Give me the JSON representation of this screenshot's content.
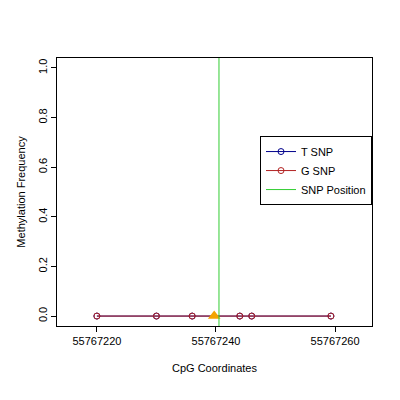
{
  "chart_data": {
    "type": "line",
    "x_label": "CpG Coordinates",
    "y_label": "Methylation Frequency",
    "xlim": [
      55767213.3,
      55767266.2
    ],
    "xticks": [
      55767220,
      55767240,
      55767260
    ],
    "ylim": [
      -0.04,
      1.04
    ],
    "yticks": [
      {
        "value": 0,
        "label": "0.0"
      },
      {
        "value": 0.2,
        "label": "0.2"
      },
      {
        "value": 0.4,
        "label": "0.4"
      },
      {
        "value": 0.6,
        "label": "0.6"
      },
      {
        "value": 0.8,
        "label": "0.8"
      },
      {
        "value": 1,
        "label": "1.0"
      }
    ],
    "grid": false,
    "legend": "right",
    "series": [
      {
        "name": "T SNP",
        "color": "#00008b",
        "type": "line",
        "marker": "circle-open",
        "x": [
          55767220,
          55767230,
          55767236,
          55767244,
          55767246,
          55767259.3
        ],
        "values": [
          0,
          0,
          0,
          0,
          0,
          0
        ]
      },
      {
        "name": "G SNP",
        "color": "#b22222",
        "type": "line",
        "marker": "circle-open",
        "x": [
          55767220,
          55767230,
          55767236,
          55767244,
          55767246,
          55767259.3
        ],
        "values": [
          0,
          0,
          0,
          0,
          0,
          0
        ]
      },
      {
        "color": "#f4a300",
        "type": "scatter",
        "marker": "triangle-up",
        "x": [
          55767239.7
        ],
        "values": [
          0
        ]
      },
      {
        "name": "SNP Position",
        "color": "#32cd32",
        "type": "vline",
        "x": [
          55767240.5
        ]
      }
    ]
  }
}
